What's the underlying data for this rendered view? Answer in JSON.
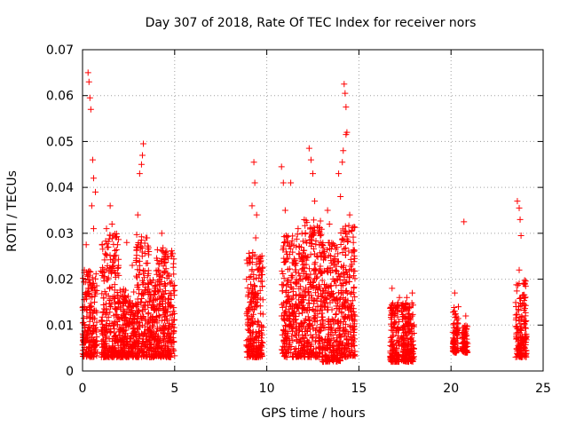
{
  "chart_data": {
    "type": "scatter",
    "title": "Day 307 of 2018, Rate Of TEC Index for receiver nors",
    "xlabel": "GPS time / hours",
    "ylabel": "ROTI / TECUs",
    "xlim": [
      0,
      25
    ],
    "ylim": [
      0,
      0.07
    ],
    "xticks": [
      "0",
      "5",
      "10",
      "15",
      "20",
      "25"
    ],
    "yticks": [
      "0",
      "0.01",
      "0.02",
      "0.03",
      "0.04",
      "0.05",
      "0.06",
      "0.07"
    ],
    "grid": true,
    "marker": "+",
    "series": [
      {
        "color": "#ff0000",
        "points": [
          [
            0.3,
            0.065
          ],
          [
            0.35,
            0.063
          ],
          [
            0.4,
            0.0595
          ],
          [
            0.45,
            0.057
          ],
          [
            0.55,
            0.046
          ],
          [
            0.6,
            0.042
          ],
          [
            0.7,
            0.039
          ],
          [
            0.5,
            0.036
          ],
          [
            0.2,
            0.0275
          ],
          [
            0.1,
            0.022
          ],
          [
            0.6,
            0.031
          ],
          [
            0.3,
            0.018
          ],
          [
            1.3,
            0.031
          ],
          [
            1.5,
            0.036
          ],
          [
            1.6,
            0.032
          ],
          [
            1.4,
            0.027
          ],
          [
            1.7,
            0.025
          ],
          [
            2.4,
            0.028
          ],
          [
            2.7,
            0.023
          ],
          [
            3.0,
            0.034
          ],
          [
            3.1,
            0.043
          ],
          [
            3.3,
            0.0495
          ],
          [
            3.25,
            0.047
          ],
          [
            3.2,
            0.045
          ],
          [
            3.6,
            0.026
          ],
          [
            4.3,
            0.03
          ],
          [
            4.1,
            0.022
          ],
          [
            4.5,
            0.025
          ],
          [
            8.9,
            0.02
          ],
          [
            9.2,
            0.036
          ],
          [
            9.3,
            0.0455
          ],
          [
            9.35,
            0.041
          ],
          [
            9.45,
            0.034
          ],
          [
            9.4,
            0.029
          ],
          [
            9.5,
            0.022
          ],
          [
            10.8,
            0.0445
          ],
          [
            10.9,
            0.041
          ],
          [
            11.0,
            0.035
          ],
          [
            11.3,
            0.041
          ],
          [
            11.7,
            0.031
          ],
          [
            12.3,
            0.0485
          ],
          [
            12.4,
            0.046
          ],
          [
            12.5,
            0.043
          ],
          [
            12.6,
            0.037
          ],
          [
            12.9,
            0.03
          ],
          [
            13.3,
            0.035
          ],
          [
            13.4,
            0.032
          ],
          [
            13.9,
            0.043
          ],
          [
            14.0,
            0.038
          ],
          [
            14.1,
            0.0455
          ],
          [
            14.2,
            0.0625
          ],
          [
            14.25,
            0.0605
          ],
          [
            14.3,
            0.0575
          ],
          [
            14.35,
            0.052
          ],
          [
            14.3,
            0.0515
          ],
          [
            14.15,
            0.048
          ],
          [
            14.5,
            0.034
          ],
          [
            14.7,
            0.028
          ],
          [
            16.8,
            0.018
          ],
          [
            17.2,
            0.016
          ],
          [
            17.6,
            0.016
          ],
          [
            17.9,
            0.017
          ],
          [
            20.2,
            0.017
          ],
          [
            20.4,
            0.014
          ],
          [
            20.7,
            0.0325
          ],
          [
            20.8,
            0.012
          ],
          [
            23.6,
            0.037
          ],
          [
            23.7,
            0.0355
          ],
          [
            23.75,
            0.033
          ],
          [
            23.8,
            0.0295
          ],
          [
            23.7,
            0.022
          ],
          [
            24.0,
            0.019
          ],
          [
            24.05,
            0.0185
          ]
        ],
        "bands": [
          [
            0.0,
            0.8,
            0.003,
            0.022
          ],
          [
            1.0,
            2.0,
            0.003,
            0.03
          ],
          [
            2.0,
            2.9,
            0.003,
            0.018
          ],
          [
            2.9,
            3.6,
            0.003,
            0.03
          ],
          [
            3.6,
            4.0,
            0.003,
            0.02
          ],
          [
            4.0,
            5.0,
            0.003,
            0.027
          ],
          [
            8.9,
            9.8,
            0.003,
            0.026
          ],
          [
            10.8,
            12.0,
            0.003,
            0.03
          ],
          [
            12.0,
            13.0,
            0.003,
            0.033
          ],
          [
            13.0,
            14.0,
            0.002,
            0.028
          ],
          [
            14.0,
            14.8,
            0.003,
            0.032
          ],
          [
            16.7,
            17.2,
            0.002,
            0.015
          ],
          [
            17.3,
            18.0,
            0.002,
            0.015
          ],
          [
            20.1,
            20.4,
            0.004,
            0.014
          ],
          [
            20.6,
            20.9,
            0.004,
            0.01
          ],
          [
            23.5,
            24.1,
            0.003,
            0.02
          ]
        ]
      }
    ]
  }
}
